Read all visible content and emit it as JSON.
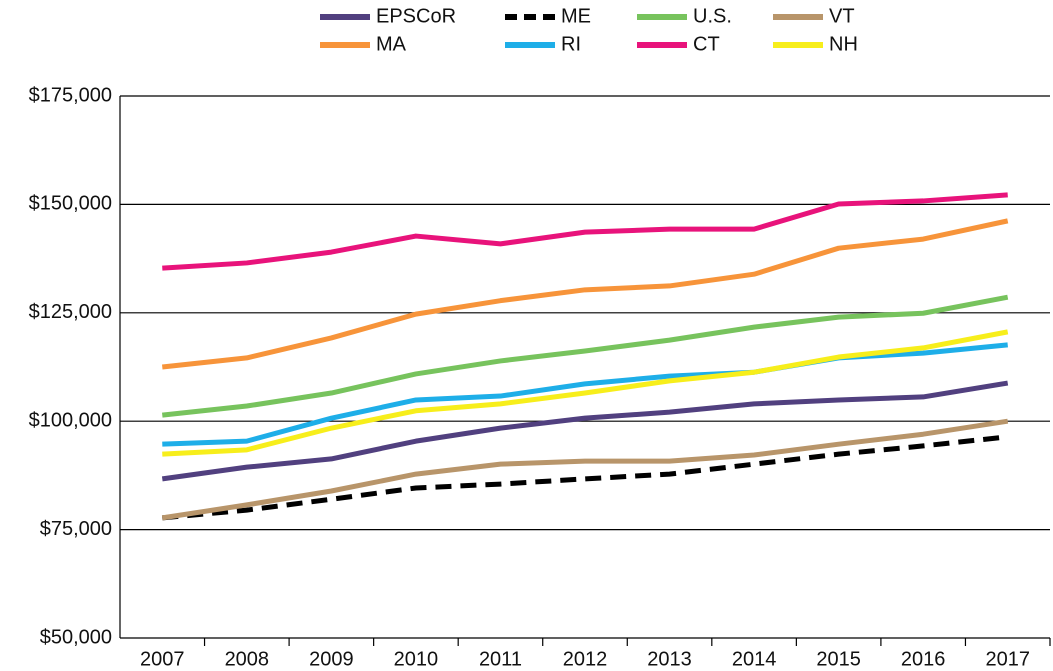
{
  "chart_data": {
    "type": "line",
    "categories": [
      "2007",
      "2008",
      "2009",
      "2010",
      "2011",
      "2012",
      "2013",
      "2014",
      "2015",
      "2016",
      "2017"
    ],
    "series": [
      {
        "name": "EPSCoR",
        "color": "#51407f",
        "values": [
          86700,
          89400,
          91300,
          95400,
          98400,
          100700,
          102100,
          104000,
          104900,
          105600,
          108800
        ]
      },
      {
        "name": "ME",
        "color": "#000000",
        "dashed": true,
        "values": [
          77700,
          79500,
          82000,
          84600,
          85500,
          86700,
          87800,
          90100,
          92400,
          94300,
          96400
        ]
      },
      {
        "name": "U.S.",
        "color": "#77c35d",
        "values": [
          101400,
          103500,
          106500,
          110900,
          113900,
          116200,
          118700,
          121700,
          124000,
          124900,
          128600
        ]
      },
      {
        "name": "VT",
        "color": "#b8956a",
        "values": [
          77700,
          80700,
          83900,
          87800,
          90100,
          90800,
          90800,
          92200,
          94700,
          97000,
          100000
        ]
      },
      {
        "name": "MA",
        "color": "#f7943a",
        "values": [
          112500,
          114600,
          119200,
          124700,
          127800,
          130300,
          131200,
          133900,
          139900,
          142000,
          146200
        ]
      },
      {
        "name": "RI",
        "color": "#1eaee8",
        "values": [
          94700,
          95400,
          100700,
          104900,
          105800,
          108600,
          110400,
          111300,
          114600,
          115700,
          117600
        ]
      },
      {
        "name": "CT",
        "color": "#e8137b",
        "values": [
          135300,
          136500,
          139000,
          142700,
          140900,
          143600,
          144300,
          144300,
          150100,
          150800,
          152200
        ]
      },
      {
        "name": "NH",
        "color": "#f7ee1b",
        "values": [
          92400,
          93400,
          98400,
          102400,
          104000,
          106500,
          109300,
          111300,
          114800,
          116900,
          120600
        ]
      }
    ],
    "ylim": [
      50000,
      175000
    ],
    "yticks": [
      {
        "value": 50000,
        "label": "$50,000"
      },
      {
        "value": 75000,
        "label": "$75,000"
      },
      {
        "value": 100000,
        "label": "$100,000"
      },
      {
        "value": 125000,
        "label": "$125,000"
      },
      {
        "value": 150000,
        "label": "$150,000"
      },
      {
        "value": 175000,
        "label": "$175,000"
      }
    ],
    "grid": true,
    "legend": "top"
  }
}
